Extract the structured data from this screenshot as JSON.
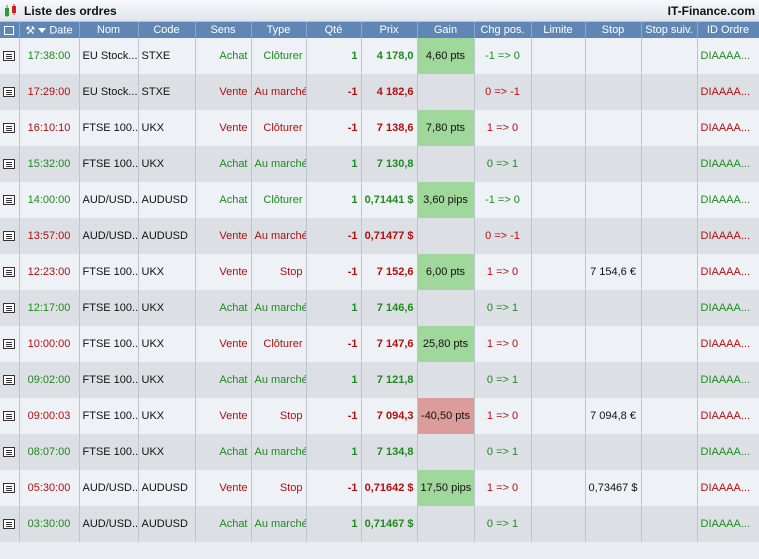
{
  "window": {
    "title": "Liste des ordres",
    "brand": "IT-Finance.com"
  },
  "columns": {
    "date": "Date",
    "nom": "Nom",
    "code": "Code",
    "sens": "Sens",
    "type": "Type",
    "qte": "Qté",
    "prix": "Prix",
    "gain": "Gain",
    "chg_pos": "Chg pos.",
    "limite": "Limite",
    "stop": "Stop",
    "stop_suiv": "Stop suiv.",
    "id_ordre": "ID Ordre"
  },
  "colors": {
    "buy": "#1f8a1f",
    "sell": "#b01010",
    "gain_positive": "#9fd89a",
    "gain_negative": "#dd9c9c",
    "header": "#5f86b4"
  },
  "orders": [
    {
      "date": "17:38:00",
      "nom": "EU Stock...",
      "code": "STXE",
      "sens": "Achat",
      "type": "Clôturer",
      "qte": "1",
      "prix": "4 178,0",
      "gain": "4,60 pts",
      "gain_sign": "pos",
      "chg": "-1 => 0",
      "limite": "",
      "stop": "",
      "stop_suiv": "",
      "id": "DIAAAA...",
      "side": "buy"
    },
    {
      "date": "17:29:00",
      "nom": "EU Stock...",
      "code": "STXE",
      "sens": "Vente",
      "type": "Au marché",
      "qte": "-1",
      "prix": "4 182,6",
      "gain": "",
      "gain_sign": "",
      "chg": "0 => -1",
      "limite": "",
      "stop": "",
      "stop_suiv": "",
      "id": "DIAAAA...",
      "side": "sell"
    },
    {
      "date": "16:10:10",
      "nom": "FTSE 100...",
      "code": "UKX",
      "sens": "Vente",
      "type": "Clôturer",
      "qte": "-1",
      "prix": "7 138,6",
      "gain": "7,80 pts",
      "gain_sign": "pos",
      "chg": "1 => 0",
      "limite": "",
      "stop": "",
      "stop_suiv": "",
      "id": "DIAAAA...",
      "side": "sell"
    },
    {
      "date": "15:32:00",
      "nom": "FTSE 100...",
      "code": "UKX",
      "sens": "Achat",
      "type": "Au marché",
      "qte": "1",
      "prix": "7 130,8",
      "gain": "",
      "gain_sign": "",
      "chg": "0 => 1",
      "limite": "",
      "stop": "",
      "stop_suiv": "",
      "id": "DIAAAA...",
      "side": "buy"
    },
    {
      "date": "14:00:00",
      "nom": "AUD/USD...",
      "code": "AUDUSD",
      "sens": "Achat",
      "type": "Clôturer",
      "qte": "1",
      "prix": "0,71441 $",
      "gain": "3,60 pips",
      "gain_sign": "pos",
      "chg": "-1 => 0",
      "limite": "",
      "stop": "",
      "stop_suiv": "",
      "id": "DIAAAA...",
      "side": "buy"
    },
    {
      "date": "13:57:00",
      "nom": "AUD/USD...",
      "code": "AUDUSD",
      "sens": "Vente",
      "type": "Au marché",
      "qte": "-1",
      "prix": "0,71477 $",
      "gain": "",
      "gain_sign": "",
      "chg": "0 => -1",
      "limite": "",
      "stop": "",
      "stop_suiv": "",
      "id": "DIAAAA...",
      "side": "sell"
    },
    {
      "date": "12:23:00",
      "nom": "FTSE 100...",
      "code": "UKX",
      "sens": "Vente",
      "type": "Stop",
      "qte": "-1",
      "prix": "7 152,6",
      "gain": "6,00 pts",
      "gain_sign": "pos",
      "chg": "1 => 0",
      "limite": "",
      "stop": "7 154,6 €",
      "stop_suiv": "",
      "id": "DIAAAA...",
      "side": "sell"
    },
    {
      "date": "12:17:00",
      "nom": "FTSE 100...",
      "code": "UKX",
      "sens": "Achat",
      "type": "Au marché",
      "qte": "1",
      "prix": "7 146,6",
      "gain": "",
      "gain_sign": "",
      "chg": "0 => 1",
      "limite": "",
      "stop": "",
      "stop_suiv": "",
      "id": "DIAAAA...",
      "side": "buy"
    },
    {
      "date": "10:00:00",
      "nom": "FTSE 100...",
      "code": "UKX",
      "sens": "Vente",
      "type": "Clôturer",
      "qte": "-1",
      "prix": "7 147,6",
      "gain": "25,80 pts",
      "gain_sign": "pos",
      "chg": "1 => 0",
      "limite": "",
      "stop": "",
      "stop_suiv": "",
      "id": "DIAAAA...",
      "side": "sell"
    },
    {
      "date": "09:02:00",
      "nom": "FTSE 100...",
      "code": "UKX",
      "sens": "Achat",
      "type": "Au marché",
      "qte": "1",
      "prix": "7 121,8",
      "gain": "",
      "gain_sign": "",
      "chg": "0 => 1",
      "limite": "",
      "stop": "",
      "stop_suiv": "",
      "id": "DIAAAA...",
      "side": "buy"
    },
    {
      "date": "09:00:03",
      "nom": "FTSE 100...",
      "code": "UKX",
      "sens": "Vente",
      "type": "Stop",
      "qte": "-1",
      "prix": "7 094,3",
      "gain": "-40,50 pts",
      "gain_sign": "neg",
      "chg": "1 => 0",
      "limite": "",
      "stop": "7 094,8 €",
      "stop_suiv": "",
      "id": "DIAAAA...",
      "side": "sell"
    },
    {
      "date": "08:07:00",
      "nom": "FTSE 100...",
      "code": "UKX",
      "sens": "Achat",
      "type": "Au marché",
      "qte": "1",
      "prix": "7 134,8",
      "gain": "",
      "gain_sign": "",
      "chg": "0 => 1",
      "limite": "",
      "stop": "",
      "stop_suiv": "",
      "id": "DIAAAA...",
      "side": "buy"
    },
    {
      "date": "05:30:00",
      "nom": "AUD/USD...",
      "code": "AUDUSD",
      "sens": "Vente",
      "type": "Stop",
      "qte": "-1",
      "prix": "0,71642 $",
      "gain": "17,50 pips",
      "gain_sign": "pos",
      "chg": "1 => 0",
      "limite": "",
      "stop": "0,73467 $",
      "stop_suiv": "",
      "id": "DIAAAA...",
      "side": "sell"
    },
    {
      "date": "03:30:00",
      "nom": "AUD/USD...",
      "code": "AUDUSD",
      "sens": "Achat",
      "type": "Au marché",
      "qte": "1",
      "prix": "0,71467 $",
      "gain": "",
      "gain_sign": "",
      "chg": "0 => 1",
      "limite": "",
      "stop": "",
      "stop_suiv": "",
      "id": "DIAAAA...",
      "side": "buy"
    }
  ]
}
